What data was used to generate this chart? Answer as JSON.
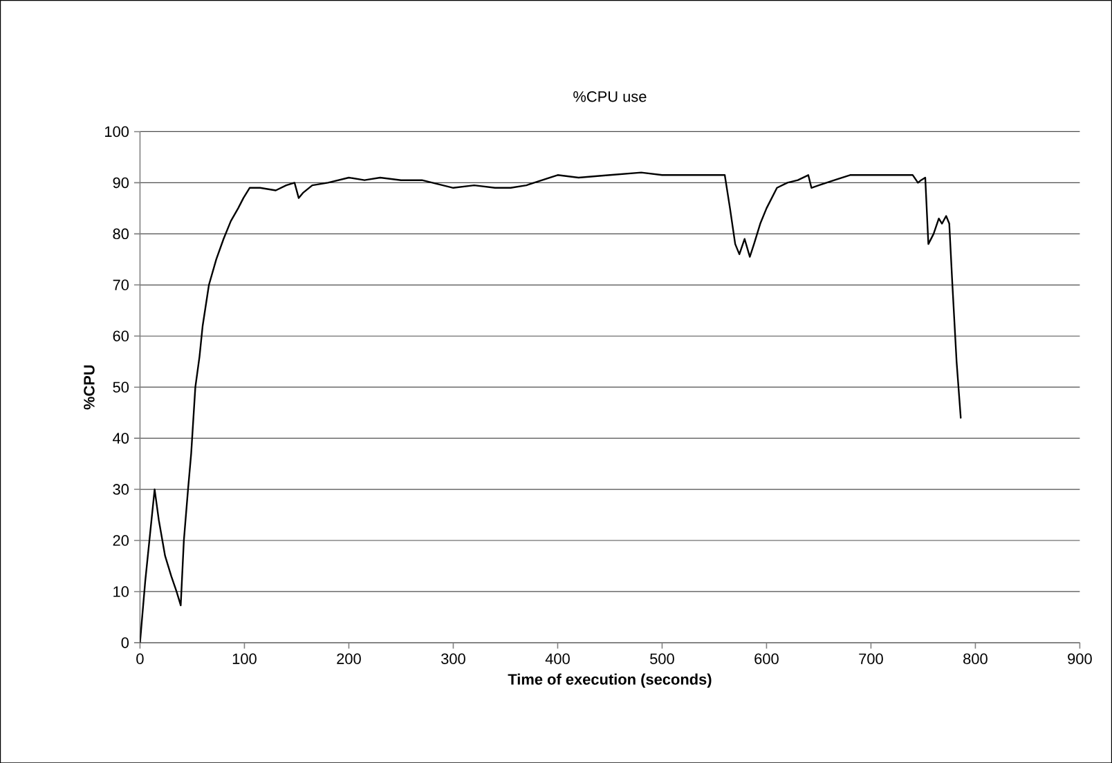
{
  "chart_data": {
    "type": "line",
    "title": "%CPU use",
    "xlabel": "Time of execution (seconds)",
    "ylabel": "%CPU",
    "xlim": [
      0,
      900
    ],
    "ylim": [
      0,
      100
    ],
    "xticks": [
      0,
      100,
      200,
      300,
      400,
      500,
      600,
      700,
      800,
      900
    ],
    "yticks": [
      0,
      10,
      20,
      30,
      40,
      50,
      60,
      70,
      80,
      90,
      100
    ],
    "grid": "y",
    "marker": "none",
    "line_style": "solid",
    "series": [
      {
        "color": "#000000",
        "x": [
          0,
          5,
          10,
          14,
          18,
          24,
          30,
          35,
          39,
          42,
          46,
          49,
          53,
          57,
          60,
          66,
          73,
          80,
          87,
          94,
          99,
          105,
          115,
          130,
          140,
          148,
          152,
          156,
          165,
          180,
          200,
          215,
          230,
          250,
          270,
          290,
          300,
          320,
          340,
          355,
          370,
          385,
          400,
          420,
          450,
          480,
          500,
          520,
          545,
          560,
          565,
          570,
          574,
          579,
          584,
          588,
          594,
          600,
          610,
          620,
          630,
          640,
          643,
          650,
          665,
          680,
          700,
          720,
          740,
          745,
          748,
          752,
          755,
          760,
          765,
          768,
          772,
          775,
          778,
          782,
          786
        ],
        "values": [
          0,
          12,
          22,
          30,
          24,
          17,
          13,
          10,
          7.3,
          20,
          30,
          37,
          50,
          56,
          62,
          70,
          75,
          79,
          82.5,
          85,
          87,
          89,
          89,
          88.5,
          89.5,
          90,
          87,
          88,
          89.5,
          90,
          91,
          90.5,
          91,
          90.5,
          90.5,
          89.5,
          89,
          89.5,
          89,
          89,
          89.5,
          90.5,
          91.5,
          91,
          91.5,
          92,
          91.5,
          91.5,
          91.5,
          91.5,
          85,
          78,
          76,
          79,
          75.5,
          78,
          82,
          85,
          89,
          90,
          90.5,
          91.5,
          89,
          89.5,
          90.5,
          91.5,
          91.5,
          91.5,
          91.5,
          90,
          90.5,
          91,
          78,
          80,
          83,
          82,
          83.5,
          82,
          70,
          55,
          44
        ]
      }
    ]
  }
}
